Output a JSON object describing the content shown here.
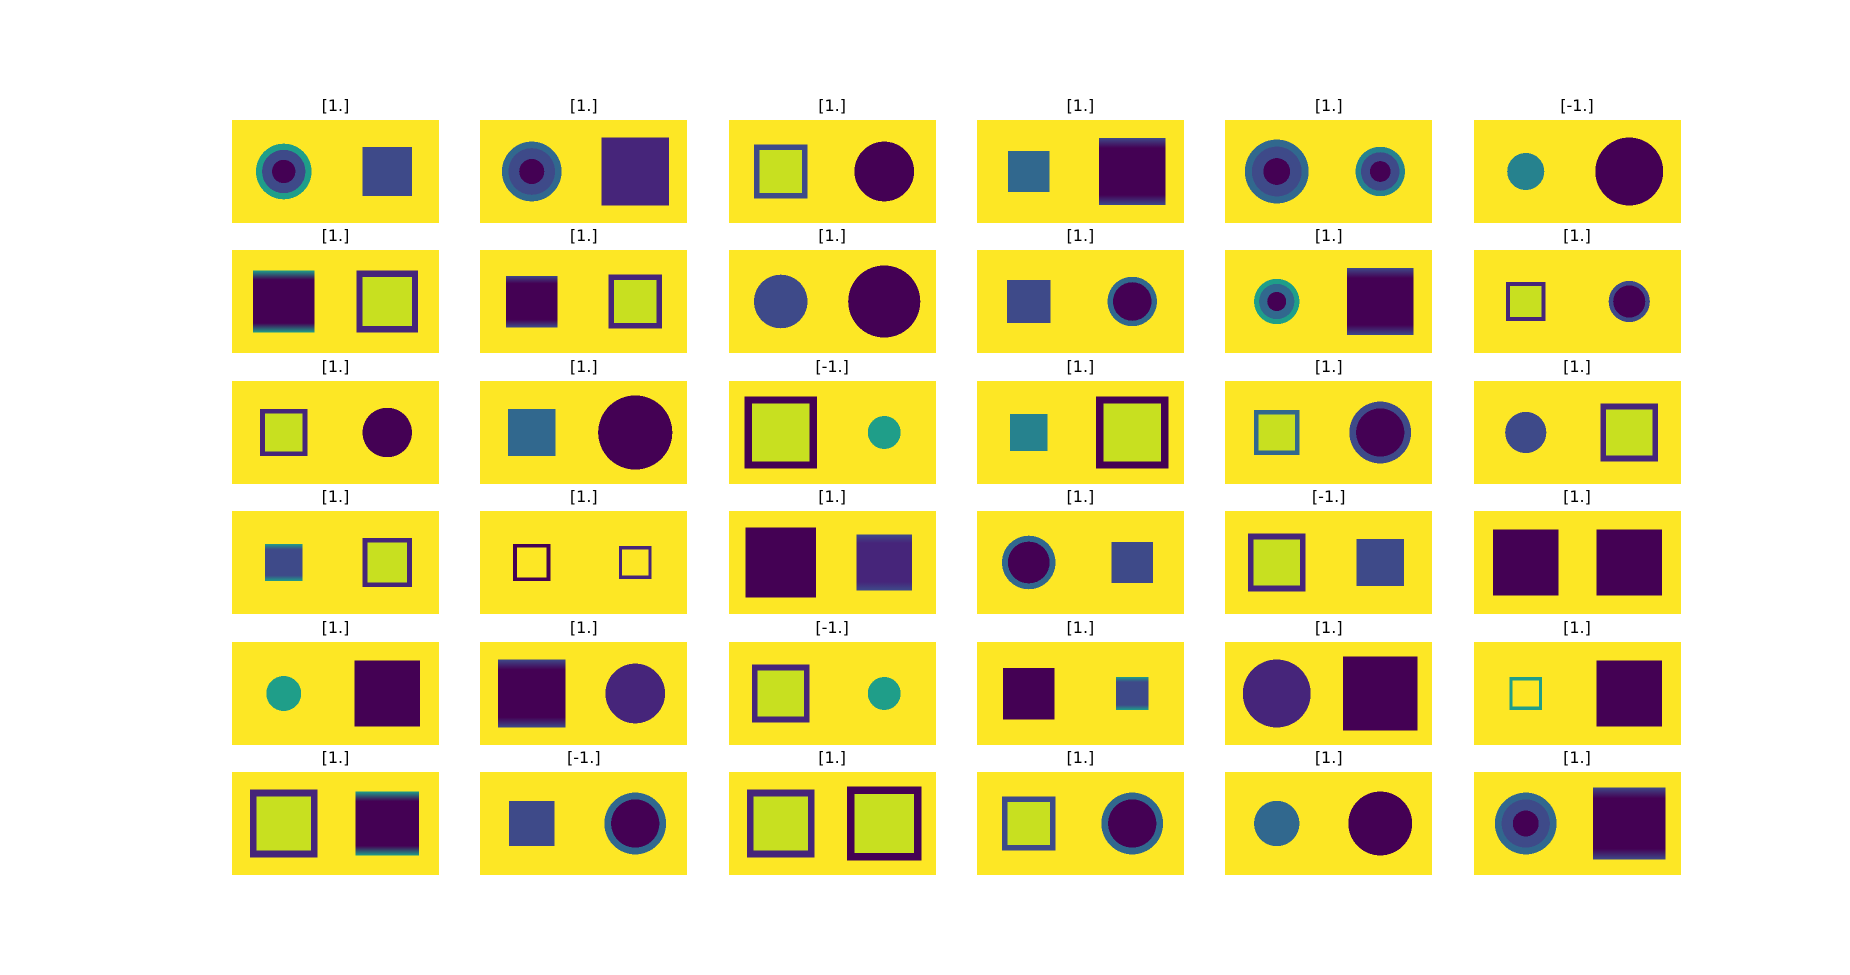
{
  "colors": {
    "background": "#fde725",
    "dark": "#440154",
    "purple": "#46257a",
    "indigo": "#3e4a89",
    "blue": "#31688e",
    "teal": "#26828e",
    "cyan": "#1f9e89",
    "lime": "#c8e020",
    "title_text": "#000000"
  },
  "panels": [
    {
      "title": "[1.]",
      "left": {
        "kind": "radial-circle",
        "size": 0.54,
        "color": "indigo",
        "border_color": "cyan"
      },
      "right": {
        "kind": "square",
        "size": 0.48,
        "color": "indigo",
        "border_color": "blue"
      }
    },
    {
      "title": "[1.]",
      "left": {
        "kind": "radial-circle",
        "size": 0.58,
        "color": "indigo",
        "border_color": "blue"
      },
      "right": {
        "kind": "square",
        "size": 0.66,
        "color": "purple"
      }
    },
    {
      "title": "[1.]",
      "left": {
        "kind": "outline-square",
        "size": 0.52,
        "color": "lime",
        "border_color": "indigo"
      },
      "right": {
        "kind": "circle",
        "size": 0.58,
        "color": "dark"
      }
    },
    {
      "title": "[1.]",
      "left": {
        "kind": "square",
        "size": 0.4,
        "color": "blue"
      },
      "right": {
        "kind": "banded-square",
        "size": 0.65,
        "color": "dark",
        "border_color": "indigo"
      }
    },
    {
      "title": "[1.]",
      "left": {
        "kind": "radial-circle",
        "size": 0.62,
        "color": "indigo",
        "border_color": "blue"
      },
      "right": {
        "kind": "radial-circle",
        "size": 0.48,
        "color": "indigo",
        "border_color": "teal"
      }
    },
    {
      "title": "[-1.]",
      "left": {
        "kind": "circle",
        "size": 0.36,
        "color": "teal"
      },
      "right": {
        "kind": "circle",
        "size": 0.66,
        "color": "dark"
      }
    },
    {
      "title": "[1.]",
      "left": {
        "kind": "banded-square",
        "size": 0.6,
        "color": "dark",
        "border_color": "cyan"
      },
      "right": {
        "kind": "outline-square",
        "size": 0.6,
        "color": "lime",
        "border_color": "purple"
      }
    },
    {
      "title": "[1.]",
      "left": {
        "kind": "banded-square",
        "size": 0.5,
        "color": "dark",
        "border_color": "indigo"
      },
      "right": {
        "kind": "outline-square",
        "size": 0.52,
        "color": "lime",
        "border_color": "purple"
      }
    },
    {
      "title": "[1.]",
      "left": {
        "kind": "circle",
        "size": 0.52,
        "color": "indigo"
      },
      "right": {
        "kind": "circle",
        "size": 0.7,
        "color": "dark"
      }
    },
    {
      "title": "[1.]",
      "left": {
        "kind": "square",
        "size": 0.42,
        "color": "indigo"
      },
      "right": {
        "kind": "radial-circle",
        "size": 0.48,
        "color": "dark",
        "border_color": "blue"
      }
    },
    {
      "title": "[1.]",
      "left": {
        "kind": "radial-circle",
        "size": 0.44,
        "color": "blue",
        "border_color": "cyan"
      },
      "right": {
        "kind": "banded-square",
        "size": 0.65,
        "color": "dark",
        "border_color": "indigo"
      }
    },
    {
      "title": "[1.]",
      "left": {
        "kind": "outline-square",
        "size": 0.38,
        "color": "lime",
        "border_color": "purple"
      },
      "right": {
        "kind": "radial-circle",
        "size": 0.4,
        "color": "dark",
        "border_color": "indigo"
      }
    },
    {
      "title": "[1.]",
      "left": {
        "kind": "outline-square",
        "size": 0.46,
        "color": "lime",
        "border_color": "purple"
      },
      "right": {
        "kind": "circle",
        "size": 0.48,
        "color": "dark"
      }
    },
    {
      "title": "[1.]",
      "left": {
        "kind": "square",
        "size": 0.46,
        "color": "blue"
      },
      "right": {
        "kind": "circle",
        "size": 0.72,
        "color": "dark"
      }
    },
    {
      "title": "[-1.]",
      "left": {
        "kind": "outline-square",
        "size": 0.7,
        "color": "lime",
        "border_color": "dark"
      },
      "right": {
        "kind": "circle",
        "size": 0.32,
        "color": "cyan"
      }
    },
    {
      "title": "[1.]",
      "left": {
        "kind": "square",
        "size": 0.36,
        "color": "teal"
      },
      "right": {
        "kind": "outline-square",
        "size": 0.7,
        "color": "lime",
        "border_color": "dark"
      }
    },
    {
      "title": "[1.]",
      "left": {
        "kind": "outline-square",
        "size": 0.44,
        "color": "lime",
        "border_color": "blue"
      },
      "right": {
        "kind": "radial-circle",
        "size": 0.6,
        "color": "dark",
        "border_color": "indigo"
      }
    },
    {
      "title": "[1.]",
      "left": {
        "kind": "circle",
        "size": 0.4,
        "color": "indigo"
      },
      "right": {
        "kind": "outline-square",
        "size": 0.56,
        "color": "lime",
        "border_color": "purple"
      }
    },
    {
      "title": "[1.]",
      "left": {
        "kind": "banded-square",
        "size": 0.36,
        "color": "indigo",
        "border_color": "cyan"
      },
      "right": {
        "kind": "outline-square",
        "size": 0.48,
        "color": "lime",
        "border_color": "purple"
      }
    },
    {
      "title": "[1.]",
      "left": {
        "kind": "outline-square",
        "size": 0.36,
        "color": "background",
        "border_color": "dark"
      },
      "right": {
        "kind": "outline-square",
        "size": 0.32,
        "color": "background",
        "border_color": "purple"
      }
    },
    {
      "title": "[1.]",
      "left": {
        "kind": "square",
        "size": 0.68,
        "color": "dark"
      },
      "right": {
        "kind": "banded-square",
        "size": 0.54,
        "color": "purple",
        "border_color": "indigo"
      }
    },
    {
      "title": "[1.]",
      "left": {
        "kind": "radial-circle",
        "size": 0.52,
        "color": "dark",
        "border_color": "blue"
      },
      "right": {
        "kind": "square",
        "size": 0.4,
        "color": "indigo"
      }
    },
    {
      "title": "[-1.]",
      "left": {
        "kind": "outline-square",
        "size": 0.56,
        "color": "lime",
        "border_color": "purple"
      },
      "right": {
        "kind": "square",
        "size": 0.46,
        "color": "indigo"
      }
    },
    {
      "title": "[1.]",
      "left": {
        "kind": "square",
        "size": 0.64,
        "color": "dark"
      },
      "right": {
        "kind": "square",
        "size": 0.64,
        "color": "dark"
      }
    },
    {
      "title": "[1.]",
      "left": {
        "kind": "circle",
        "size": 0.34,
        "color": "cyan"
      },
      "right": {
        "kind": "square",
        "size": 0.64,
        "color": "dark"
      }
    },
    {
      "title": "[1.]",
      "left": {
        "kind": "banded-square",
        "size": 0.66,
        "color": "dark",
        "border_color": "indigo"
      },
      "right": {
        "kind": "circle",
        "size": 0.58,
        "color": "purple"
      }
    },
    {
      "title": "[-1.]",
      "left": {
        "kind": "outline-square",
        "size": 0.56,
        "color": "lime",
        "border_color": "purple"
      },
      "right": {
        "kind": "circle",
        "size": 0.32,
        "color": "cyan"
      }
    },
    {
      "title": "[1.]",
      "left": {
        "kind": "square",
        "size": 0.5,
        "color": "dark"
      },
      "right": {
        "kind": "banded-square",
        "size": 0.32,
        "color": "indigo",
        "border_color": "cyan"
      }
    },
    {
      "title": "[1.]",
      "left": {
        "kind": "circle",
        "size": 0.66,
        "color": "purple"
      },
      "right": {
        "kind": "square",
        "size": 0.72,
        "color": "dark"
      }
    },
    {
      "title": "[1.]",
      "left": {
        "kind": "outline-square",
        "size": 0.32,
        "color": "background",
        "border_color": "cyan"
      },
      "right": {
        "kind": "square",
        "size": 0.64,
        "color": "dark"
      }
    },
    {
      "title": "[1.]",
      "left": {
        "kind": "outline-square",
        "size": 0.66,
        "color": "lime",
        "border_color": "purple"
      },
      "right": {
        "kind": "banded-square",
        "size": 0.62,
        "color": "dark",
        "border_color": "cyan"
      }
    },
    {
      "title": "[-1.]",
      "left": {
        "kind": "square",
        "size": 0.44,
        "color": "indigo"
      },
      "right": {
        "kind": "radial-circle",
        "size": 0.6,
        "color": "dark",
        "border_color": "blue"
      }
    },
    {
      "title": "[1.]",
      "left": {
        "kind": "outline-square",
        "size": 0.66,
        "color": "lime",
        "border_color": "purple"
      },
      "right": {
        "kind": "outline-square",
        "size": 0.72,
        "color": "lime",
        "border_color": "dark"
      }
    },
    {
      "title": "[1.]",
      "left": {
        "kind": "outline-square",
        "size": 0.52,
        "color": "lime",
        "border_color": "indigo"
      },
      "right": {
        "kind": "radial-circle",
        "size": 0.6,
        "color": "dark",
        "border_color": "blue"
      }
    },
    {
      "title": "[1.]",
      "left": {
        "kind": "circle",
        "size": 0.44,
        "color": "blue"
      },
      "right": {
        "kind": "circle",
        "size": 0.62,
        "color": "dark"
      }
    },
    {
      "title": "[1.]",
      "left": {
        "kind": "radial-circle",
        "size": 0.6,
        "color": "indigo",
        "border_color": "blue"
      },
      "right": {
        "kind": "banded-square",
        "size": 0.7,
        "color": "dark",
        "border_color": "indigo"
      }
    }
  ]
}
